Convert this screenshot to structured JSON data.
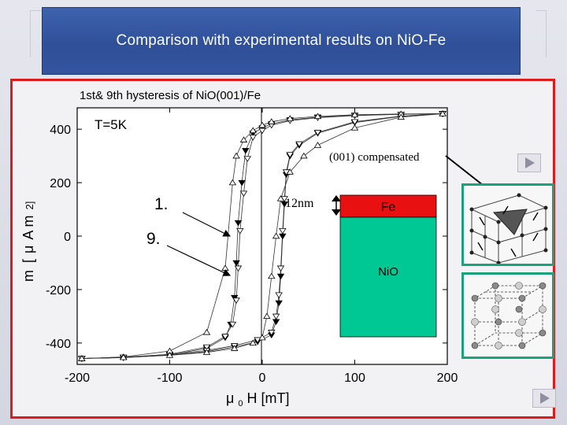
{
  "slide": {
    "title": "Comparison with experimental results on NiO-Fe"
  },
  "figure": {
    "subtitle": "1st& 9th hysteresis of NiO(001)/Fe",
    "temperature_label": "T=5K",
    "annotation_1": "1.",
    "annotation_9": "9.",
    "thickness_label": "12nm",
    "compensated_label": "(001) compensated",
    "layer_fe": "Fe",
    "layer_nio": "NiO",
    "xlabel_mu": "μ",
    "xlabel_sub": "0",
    "xlabel_rest": "H [mT]",
    "ylabel_line1": "m",
    "ylabel_line2": "A m",
    "ylabel_bracket": "2]",
    "ylabel_bracket_left": "[",
    "ylabel_sub_u": "μ"
  },
  "chart_data": {
    "type": "scatter",
    "xlim": [
      -200,
      200
    ],
    "ylim": [
      -480,
      480
    ],
    "x_ticks": [
      -200,
      -100,
      0,
      100,
      200
    ],
    "y_ticks": [
      -400,
      -200,
      0,
      200,
      400
    ],
    "x_tick_labels": [
      "-200",
      "-100",
      "0",
      "100",
      "200"
    ],
    "y_tick_labels": [
      "-400",
      "-200",
      "0",
      "200",
      "400"
    ],
    "series": [
      {
        "marker": "filled-triangle-down",
        "color": "#000000",
        "descending_branch": {
          "x": [
            195,
            150,
            100,
            60,
            30,
            10,
            0,
            -10,
            -18,
            -22,
            -26,
            -28,
            -30,
            -34,
            -40,
            -60,
            -100,
            -150,
            -195
          ],
          "y": [
            458,
            456,
            452,
            445,
            435,
            420,
            405,
            385,
            320,
            200,
            50,
            -100,
            -230,
            -330,
            -380,
            -420,
            -445,
            -455,
            -458
          ]
        },
        "ascending_branch": {
          "x": [
            -195,
            -150,
            -100,
            -60,
            -30,
            -5,
            10,
            15,
            18,
            20,
            22,
            24,
            26,
            30,
            40,
            60,
            100,
            150,
            195
          ],
          "y": [
            -458,
            -454,
            -445,
            -432,
            -415,
            -395,
            -370,
            -320,
            -250,
            -150,
            0,
            120,
            230,
            300,
            340,
            385,
            425,
            448,
            458
          ]
        }
      },
      {
        "marker": "open-triangle-down",
        "color": "#000000",
        "descending_branch": {
          "x": [
            195,
            150,
            100,
            60,
            30,
            10,
            0,
            -10,
            -16,
            -20,
            -24,
            -26,
            -28,
            -32,
            -40,
            -60,
            -100,
            -150,
            -195
          ],
          "y": [
            458,
            456,
            451,
            443,
            432,
            415,
            395,
            370,
            290,
            160,
            20,
            -120,
            -240,
            -330,
            -375,
            -415,
            -442,
            -454,
            -458
          ]
        },
        "ascending_branch": {
          "x": [
            -195,
            -150,
            -100,
            -60,
            -30,
            -5,
            10,
            15,
            18,
            20,
            22,
            24,
            26,
            30,
            40,
            60,
            100,
            150,
            195
          ],
          "y": [
            -458,
            -453,
            -443,
            -428,
            -410,
            -388,
            -360,
            -300,
            -220,
            -120,
            20,
            140,
            240,
            305,
            345,
            388,
            428,
            449,
            458
          ]
        }
      },
      {
        "marker": "open-triangle-up",
        "color": "#000000",
        "descending_branch": {
          "x": [
            195,
            150,
            100,
            60,
            30,
            10,
            0,
            -10,
            -20,
            -28,
            -32,
            -40,
            -60,
            -100,
            -150,
            -195
          ],
          "y": [
            458,
            457,
            454,
            448,
            440,
            428,
            415,
            395,
            360,
            300,
            200,
            -120,
            -360,
            -430,
            -452,
            -458
          ]
        },
        "ascending_branch": {
          "x": [
            -195,
            -150,
            -100,
            -60,
            -30,
            -10,
            0,
            5,
            10,
            15,
            20,
            30,
            45,
            60,
            100,
            150,
            195
          ],
          "y": [
            -458,
            -454,
            -446,
            -435,
            -420,
            -400,
            -380,
            -300,
            -150,
            0,
            140,
            240,
            300,
            340,
            405,
            445,
            458
          ]
        }
      }
    ]
  }
}
